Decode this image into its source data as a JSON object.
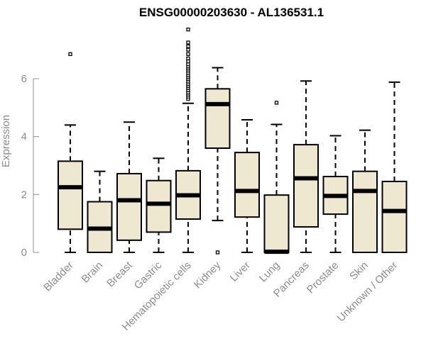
{
  "chart_data": {
    "type": "boxplot",
    "title": "ENSG00000203630 - AL136531.1",
    "xlabel": "",
    "ylabel": "Expression",
    "ylim": [
      0,
      7.8
    ],
    "yticks": [
      0,
      2,
      4,
      6
    ],
    "box_fill": "#efe8d0",
    "categories": [
      "Bladder",
      "Brain",
      "Breast",
      "Gastric",
      "Hematopoietic cells",
      "Kidney",
      "Liver",
      "Lung",
      "Pancreas",
      "Prostate",
      "Skin",
      "Unknown / Other"
    ],
    "boxes": [
      {
        "name": "Bladder",
        "min": 0,
        "q1": 0.8,
        "median": 2.25,
        "q3": 3.15,
        "max": 4.4,
        "outliers": [
          6.85
        ]
      },
      {
        "name": "Brain",
        "min": 0,
        "q1": 0,
        "median": 0.82,
        "q3": 1.75,
        "max": 2.8,
        "outliers": []
      },
      {
        "name": "Breast",
        "min": 0,
        "q1": 0.42,
        "median": 1.8,
        "q3": 2.72,
        "max": 4.5,
        "outliers": []
      },
      {
        "name": "Gastric",
        "min": 0,
        "q1": 0.7,
        "median": 1.68,
        "q3": 2.48,
        "max": 3.25,
        "outliers": []
      },
      {
        "name": "Hematopoietic cells",
        "min": 0,
        "q1": 1.15,
        "median": 1.97,
        "q3": 2.82,
        "max": 5.15,
        "outliers": [
          5.3,
          5.38,
          5.45,
          5.52,
          5.6,
          5.68,
          5.75,
          5.82,
          5.9,
          5.98,
          6.05,
          6.12,
          6.2,
          6.28,
          6.35,
          6.42,
          6.5,
          6.6,
          6.7,
          6.85,
          7.0,
          7.12,
          7.25,
          7.7
        ]
      },
      {
        "name": "Kidney",
        "min": 1.1,
        "q1": 3.6,
        "median": 5.12,
        "q3": 5.65,
        "max": 6.38,
        "outliers": [
          0
        ]
      },
      {
        "name": "Liver",
        "min": 0,
        "q1": 1.22,
        "median": 2.12,
        "q3": 3.45,
        "max": 4.58,
        "outliers": []
      },
      {
        "name": "Lung",
        "min": 0,
        "q1": 0,
        "median": 0.02,
        "q3": 1.98,
        "max": 4.42,
        "outliers": [
          5.17
        ]
      },
      {
        "name": "Pancreas",
        "min": 0,
        "q1": 0.88,
        "median": 2.56,
        "q3": 3.72,
        "max": 5.92,
        "outliers": []
      },
      {
        "name": "Prostate",
        "min": 0,
        "q1": 1.32,
        "median": 1.95,
        "q3": 2.62,
        "max": 4.03,
        "outliers": []
      },
      {
        "name": "Skin",
        "min": 0,
        "q1": 0,
        "median": 2.12,
        "q3": 2.8,
        "max": 4.22,
        "outliers": []
      },
      {
        "name": "Unknown / Other",
        "min": 0,
        "q1": 0,
        "median": 1.43,
        "q3": 2.45,
        "max": 5.88,
        "outliers": []
      }
    ]
  }
}
